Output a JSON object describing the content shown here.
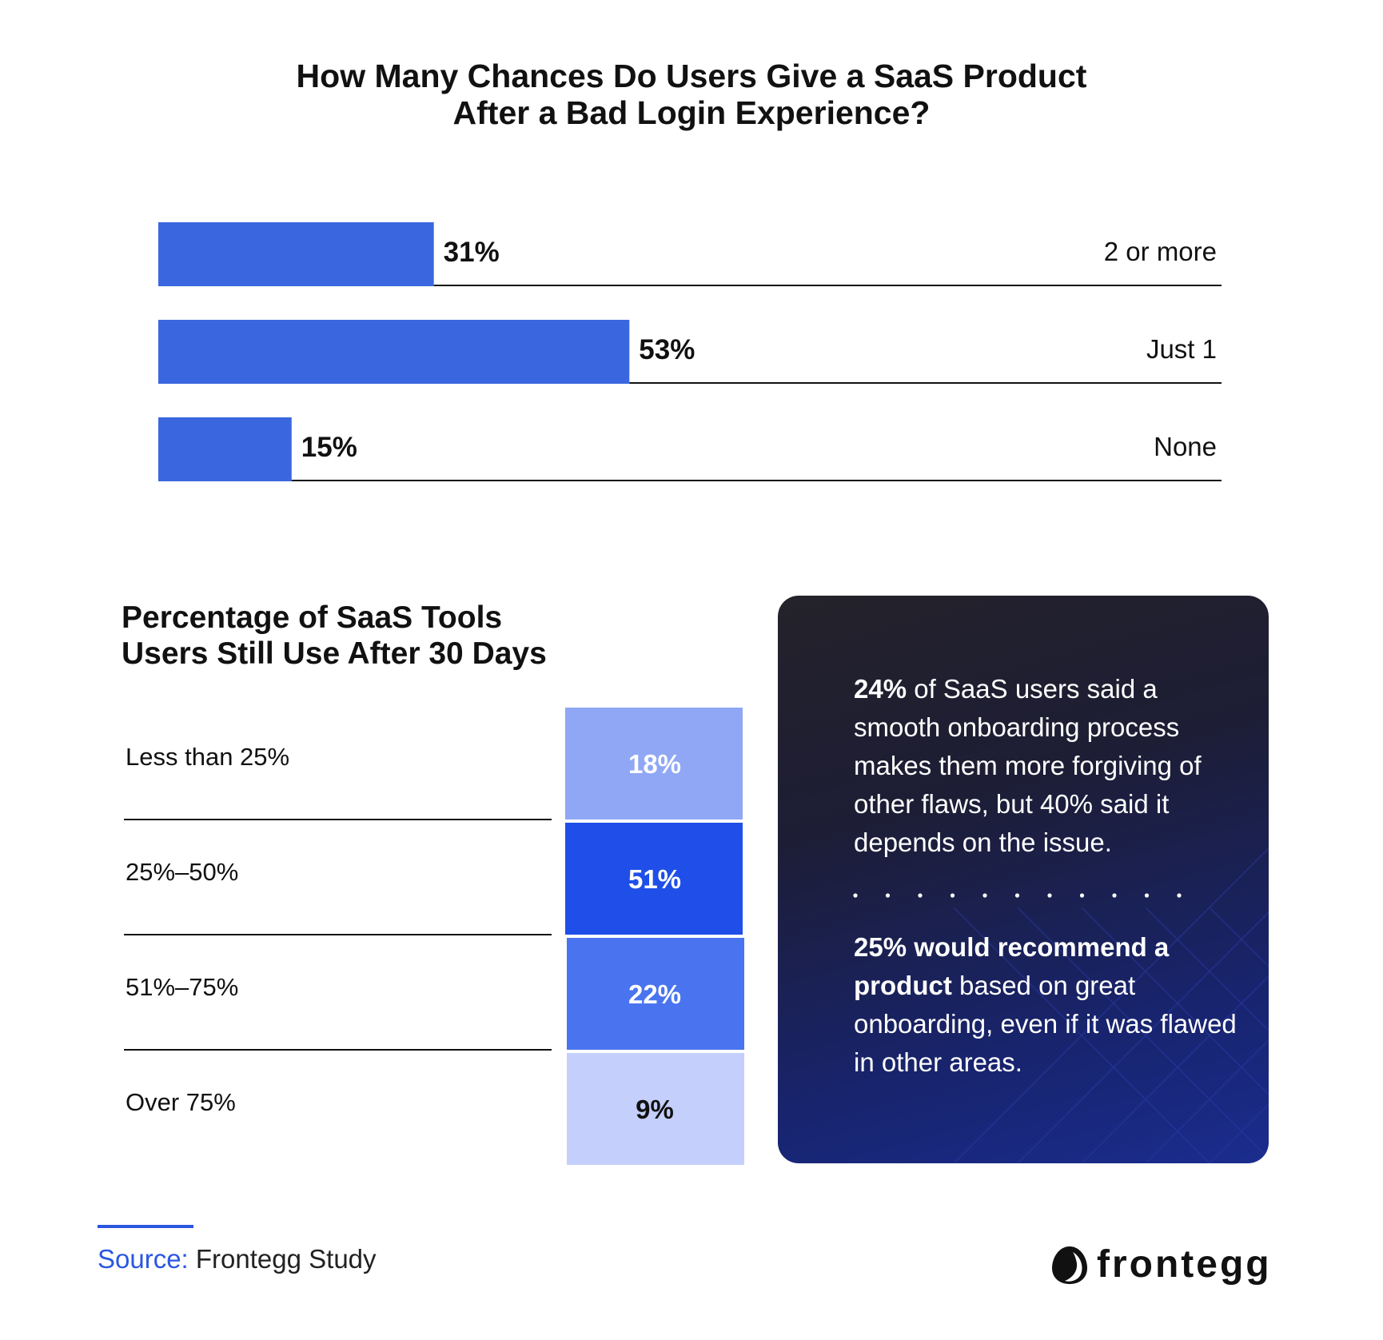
{
  "chart_data": [
    {
      "type": "bar",
      "orientation": "horizontal",
      "title": "How Many Chances Do Users Give a SaaS Product After a Bad Login Experience?",
      "title_lines": [
        "How Many Chances Do Users Give a SaaS Product",
        "After a Bad Login Experience?"
      ],
      "categories": [
        "2 or more",
        "Just 1",
        "None"
      ],
      "values": [
        31,
        53,
        15
      ],
      "value_labels": [
        "31%",
        "53%",
        "15%"
      ],
      "xlim": [
        0,
        100
      ],
      "grid": false,
      "bar_color": "#3a67e0"
    },
    {
      "type": "table",
      "title": "Percentage of SaaS Tools Users Still Use After 30 Days",
      "title_lines": [
        "Percentage of SaaS Tools",
        "Users Still Use After 30 Days"
      ],
      "categories": [
        "Less than 25%",
        "25%–50%",
        "51%–75%",
        "Over 75%"
      ],
      "values": [
        18,
        51,
        22,
        9
      ],
      "value_labels": [
        "18%",
        "51%",
        "22%",
        "9%"
      ],
      "cell_colors": [
        "#8fa7f4",
        "#1f4fe8",
        "#4a74ef",
        "#c4d0fb"
      ],
      "text_colors": [
        "#ffffff",
        "#ffffff",
        "#ffffff",
        "#111111"
      ]
    }
  ],
  "callout": {
    "stat1": {
      "highlight": "24%",
      "text": " of SaaS users said a smooth onboarding process makes them more forgiving of other flaws, but 40% said it depends on the issue."
    },
    "stat2": {
      "highlight": "25% would recommend a product",
      "text": " based on great onboarding, even if it was flawed in other areas."
    }
  },
  "footer": {
    "source_label": "Source:",
    "source_text": " Frontegg Study",
    "brand_name": "frontegg",
    "brand_icon": "egg-logo-icon",
    "accent_color": "#2b57e0"
  }
}
